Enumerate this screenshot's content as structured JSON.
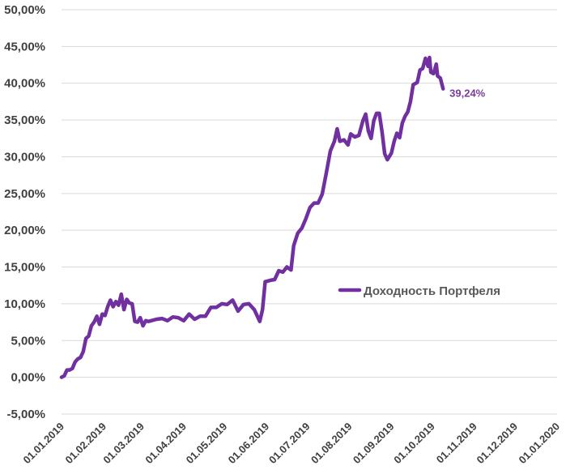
{
  "colors": {
    "series": "#7030A0",
    "label": "#7A3B9C",
    "grid": "#D9D9D9",
    "axis_text": "#404040"
  },
  "chart_data": {
    "type": "line",
    "title": "",
    "xlabel": "",
    "ylabel": "",
    "ylim": [
      -5,
      50
    ],
    "y_ticks": [
      "-5,00%",
      "0,00%",
      "5,00%",
      "10,00%",
      "15,00%",
      "20,00%",
      "25,00%",
      "30,00%",
      "35,00%",
      "40,00%",
      "45,00%",
      "50,00%"
    ],
    "x_ticks": [
      "01.01.2019",
      "01.02.2019",
      "01.03.2019",
      "01.04.2019",
      "01.05.2019",
      "01.06.2019",
      "01.07.2019",
      "01.08.2019",
      "01.09.2019",
      "01.10.2019",
      "01.11.2019",
      "01.12.2019",
      "01.01.2020"
    ],
    "grid": "horizontal",
    "legend_position": "right-middle",
    "last_value_label": "39,24%",
    "series": [
      {
        "name": "Доходность Портфеля",
        "points": [
          [
            "2019-01-01",
            0.0
          ],
          [
            "2019-01-03",
            0.2
          ],
          [
            "2019-01-05",
            1.0
          ],
          [
            "2019-01-07",
            1.0
          ],
          [
            "2019-01-09",
            1.2
          ],
          [
            "2019-01-11",
            2.1
          ],
          [
            "2019-01-13",
            2.5
          ],
          [
            "2019-01-15",
            2.7
          ],
          [
            "2019-01-17",
            3.5
          ],
          [
            "2019-01-19",
            5.3
          ],
          [
            "2019-01-21",
            5.6
          ],
          [
            "2019-01-23",
            7.0
          ],
          [
            "2019-01-25",
            7.5
          ],
          [
            "2019-01-27",
            8.3
          ],
          [
            "2019-01-29",
            7.2
          ],
          [
            "2019-01-31",
            8.6
          ],
          [
            "2019-02-02",
            8.4
          ],
          [
            "2019-02-04",
            9.6
          ],
          [
            "2019-02-06",
            10.5
          ],
          [
            "2019-02-08",
            9.6
          ],
          [
            "2019-02-10",
            10.3
          ],
          [
            "2019-02-12",
            9.8
          ],
          [
            "2019-02-14",
            11.3
          ],
          [
            "2019-02-16",
            9.2
          ],
          [
            "2019-02-18",
            10.6
          ],
          [
            "2019-02-20",
            10.1
          ],
          [
            "2019-02-22",
            10.0
          ],
          [
            "2019-02-24",
            7.6
          ],
          [
            "2019-02-26",
            7.5
          ],
          [
            "2019-02-28",
            8.1
          ],
          [
            "2019-03-02",
            7.0
          ],
          [
            "2019-03-04",
            7.7
          ],
          [
            "2019-03-06",
            7.6
          ],
          [
            "2019-03-08",
            7.7
          ],
          [
            "2019-03-12",
            7.9
          ],
          [
            "2019-03-16",
            8.0
          ],
          [
            "2019-03-20",
            7.7
          ],
          [
            "2019-03-24",
            8.2
          ],
          [
            "2019-03-28",
            8.1
          ],
          [
            "2019-04-01",
            7.7
          ],
          [
            "2019-04-05",
            8.6
          ],
          [
            "2019-04-09",
            7.9
          ],
          [
            "2019-04-13",
            8.3
          ],
          [
            "2019-04-17",
            8.3
          ],
          [
            "2019-04-21",
            9.5
          ],
          [
            "2019-04-25",
            9.5
          ],
          [
            "2019-04-29",
            10.0
          ],
          [
            "2019-05-03",
            9.9
          ],
          [
            "2019-05-07",
            10.5
          ],
          [
            "2019-05-11",
            9.0
          ],
          [
            "2019-05-15",
            9.9
          ],
          [
            "2019-05-19",
            10.0
          ],
          [
            "2019-05-23",
            9.2
          ],
          [
            "2019-05-27",
            7.6
          ],
          [
            "2019-05-29",
            9.2
          ],
          [
            "2019-05-31",
            13.0
          ],
          [
            "2019-06-04",
            13.2
          ],
          [
            "2019-06-07",
            13.3
          ],
          [
            "2019-06-10",
            14.5
          ],
          [
            "2019-06-13",
            14.3
          ],
          [
            "2019-06-16",
            15.0
          ],
          [
            "2019-06-19",
            14.6
          ],
          [
            "2019-06-21",
            17.9
          ],
          [
            "2019-06-24",
            19.6
          ],
          [
            "2019-06-27",
            20.3
          ],
          [
            "2019-06-30",
            21.6
          ],
          [
            "2019-07-03",
            23.1
          ],
          [
            "2019-07-06",
            23.7
          ],
          [
            "2019-07-09",
            23.7
          ],
          [
            "2019-07-12",
            24.9
          ],
          [
            "2019-07-15",
            27.8
          ],
          [
            "2019-07-18",
            30.8
          ],
          [
            "2019-07-21",
            32.1
          ],
          [
            "2019-07-23",
            33.8
          ],
          [
            "2019-07-25",
            32.1
          ],
          [
            "2019-07-28",
            32.3
          ],
          [
            "2019-07-31",
            31.6
          ],
          [
            "2019-08-02",
            33.1
          ],
          [
            "2019-08-05",
            32.7
          ],
          [
            "2019-08-08",
            32.9
          ],
          [
            "2019-08-11",
            34.9
          ],
          [
            "2019-08-13",
            35.8
          ],
          [
            "2019-08-15",
            33.5
          ],
          [
            "2019-08-17",
            32.5
          ],
          [
            "2019-08-19",
            34.9
          ],
          [
            "2019-08-21",
            35.9
          ],
          [
            "2019-08-23",
            35.9
          ],
          [
            "2019-08-25",
            33.5
          ],
          [
            "2019-08-27",
            30.4
          ],
          [
            "2019-08-29",
            29.6
          ],
          [
            "2019-09-01",
            30.5
          ],
          [
            "2019-09-03",
            32.1
          ],
          [
            "2019-09-05",
            33.2
          ],
          [
            "2019-09-07",
            32.6
          ],
          [
            "2019-09-09",
            34.6
          ],
          [
            "2019-09-11",
            35.5
          ],
          [
            "2019-09-13",
            36.1
          ],
          [
            "2019-09-15",
            37.5
          ],
          [
            "2019-09-17",
            39.8
          ],
          [
            "2019-09-20",
            40.1
          ],
          [
            "2019-09-22",
            41.8
          ],
          [
            "2019-09-24",
            42.0
          ],
          [
            "2019-09-26",
            43.4
          ],
          [
            "2019-09-28",
            42.3
          ],
          [
            "2019-09-29",
            43.5
          ],
          [
            "2019-09-30",
            41.5
          ],
          [
            "2019-10-02",
            41.3
          ],
          [
            "2019-10-04",
            42.6
          ],
          [
            "2019-10-05",
            41.0
          ],
          [
            "2019-10-07",
            40.7
          ],
          [
            "2019-10-09",
            39.24
          ]
        ]
      }
    ]
  }
}
